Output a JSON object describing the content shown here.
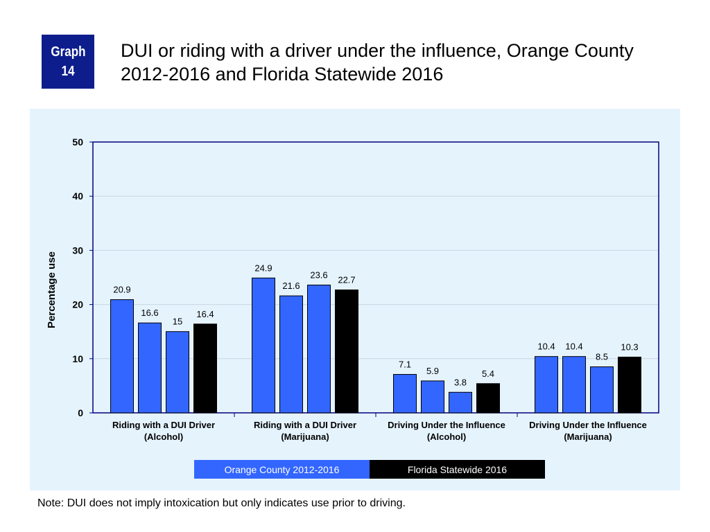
{
  "badge": {
    "line1": "Graph",
    "line2": "14"
  },
  "title": {
    "line1": "DUI or riding with a driver under the influence, Orange County",
    "line2": "2012-2016 and Florida Statewide 2016"
  },
  "note": "Note: DUI does not imply intoxication but only indicates use prior to driving.",
  "legend": {
    "orange_county": "Orange County 2012-2016",
    "florida": "Florida Statewide 2016"
  },
  "colors": {
    "orange_county": "#3366ff",
    "florida": "#000000",
    "panel_background": "#e5f3fd",
    "badge": "#0d1e8c"
  },
  "chart_data": {
    "type": "bar",
    "title": "DUI or riding with a driver under the influence, Orange County 2012-2016 and Florida Statewide 2016",
    "ylabel": "Percentage use",
    "xlabel": "",
    "ylim": [
      0,
      50
    ],
    "yticks": [
      0,
      10,
      20,
      30,
      40,
      50
    ],
    "grid": true,
    "legend_position": "bottom",
    "categories": [
      {
        "line1": "Riding with a DUI Driver",
        "line2": "(Alcohol)"
      },
      {
        "line1": "Riding with a DUI Driver",
        "line2": "(Marijuana)"
      },
      {
        "line1": "Driving Under the Influence",
        "line2": "(Alcohol)"
      },
      {
        "line1": "Driving Under the Influence",
        "line2": "(Marijuana)"
      }
    ],
    "groups": [
      {
        "orange_county": [
          20.9,
          16.6,
          15
        ],
        "florida": 16.4
      },
      {
        "orange_county": [
          24.9,
          21.6,
          23.6
        ],
        "florida": 22.7
      },
      {
        "orange_county": [
          7.1,
          5.9,
          3.8
        ],
        "florida": 5.4
      },
      {
        "orange_county": [
          10.4,
          10.4,
          8.5
        ],
        "florida": 10.3
      }
    ]
  }
}
